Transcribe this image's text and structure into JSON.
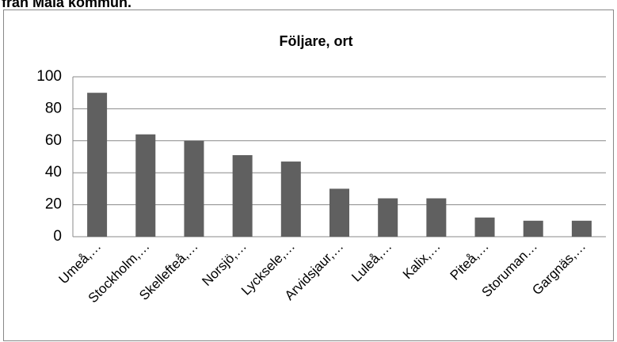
{
  "caption": "från Malå kommun.",
  "chart_data": {
    "type": "bar",
    "title": "Följare, ort",
    "categories": [
      "Umeå,…",
      "Stockholm,…",
      "Skellefteå,…",
      "Norsjö,…",
      "Lycksele,…",
      "Arvidsjaur,…",
      "Luleå,…",
      "Kalix,…",
      "Piteå,…",
      "Storuman…",
      "Gargnäs,…"
    ],
    "values": [
      90,
      64,
      60,
      51,
      47,
      30,
      24,
      24,
      12,
      10,
      10
    ],
    "color": "#606060",
    "ylim": [
      0,
      100
    ],
    "yticks": [
      0,
      20,
      40,
      60,
      80,
      100
    ],
    "grid": true
  }
}
